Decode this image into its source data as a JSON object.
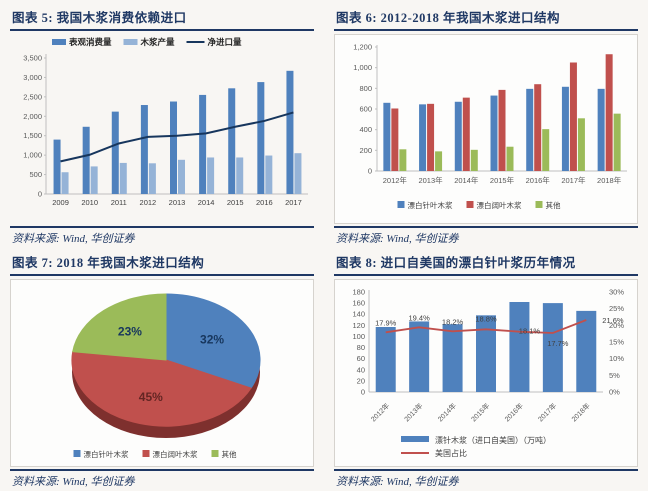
{
  "page": {
    "background": "#f8f6f3"
  },
  "colors": {
    "title_navy": "#1F3864",
    "bar_blue": "#4F81BD",
    "bar_light_blue": "#95B3D7",
    "bar_red": "#C0504D",
    "bar_green": "#9BBB59",
    "line_navy": "#17365D",
    "line_red": "#C0504D",
    "pie_rim_dark_red": "#7E302E",
    "axis_line": "#BFBFBF",
    "tick_text": "#595959",
    "chart_border": "#d6d3ce"
  },
  "chart_data": [
    {
      "id": "chart5",
      "type": "bar",
      "title": "图表 5: 我国木浆消费依赖进口",
      "source": "资料来源: Wind, 华创证券",
      "categories": [
        "2009",
        "2010",
        "2011",
        "2012",
        "2013",
        "2014",
        "2015",
        "2016",
        "2017"
      ],
      "series": [
        {
          "name": "表观消费量",
          "kind": "bar",
          "color": "#4F81BD",
          "values": [
            1400,
            1730,
            2120,
            2290,
            2380,
            2550,
            2720,
            2880,
            3170
          ]
        },
        {
          "name": "木浆产量",
          "kind": "bar",
          "color": "#95B3D7",
          "values": [
            560,
            710,
            800,
            790,
            880,
            940,
            940,
            990,
            1050
          ]
        },
        {
          "name": "净进口量",
          "kind": "line",
          "color": "#17365D",
          "values": [
            840,
            1010,
            1300,
            1470,
            1500,
            1560,
            1730,
            1880,
            2100
          ]
        }
      ],
      "ylim": [
        0,
        3500
      ],
      "ystep": 500,
      "grid": false,
      "legend_position": "top"
    },
    {
      "id": "chart6",
      "type": "bar",
      "title": "图表 6: 2012-2018 年我国木浆进口结构",
      "source": "资料来源: Wind, 华创证券",
      "categories": [
        "2012年",
        "2013年",
        "2014年",
        "2015年",
        "2016年",
        "2017年",
        "2018年"
      ],
      "series": [
        {
          "name": "漂白针叶木浆",
          "kind": "bar",
          "color": "#4F81BD",
          "values": [
            660,
            645,
            670,
            730,
            795,
            815,
            795
          ]
        },
        {
          "name": "漂白阔叶木浆",
          "kind": "bar",
          "color": "#C0504D",
          "values": [
            605,
            650,
            710,
            785,
            840,
            1050,
            1130
          ]
        },
        {
          "name": "其他",
          "kind": "bar",
          "color": "#9BBB59",
          "values": [
            210,
            190,
            205,
            235,
            405,
            510,
            555
          ]
        }
      ],
      "ylim": [
        0,
        1200
      ],
      "ystep": 200,
      "grid": false,
      "legend_position": "bottom"
    },
    {
      "id": "chart7",
      "type": "pie",
      "title": "图表 7: 2018 年我国木浆进口结构",
      "source": "资料来源: Wind, 华创证券",
      "slices": [
        {
          "name": "漂白针叶木浆",
          "color": "#4F81BD",
          "value": 32,
          "label": "32%",
          "label_color": "#17365D"
        },
        {
          "name": "漂白阔叶木浆",
          "color": "#C0504D",
          "value": 45,
          "label": "45%",
          "label_color": "#632523"
        },
        {
          "name": "其他",
          "color": "#9BBB59",
          "value": 23,
          "label": "23%",
          "label_color": "#17365D"
        }
      ],
      "start_angle_deg": -90,
      "direction": "clockwise",
      "legend_position": "bottom",
      "effect_3d": true
    },
    {
      "id": "chart8",
      "type": "bar",
      "title": "图表 8: 进口自美国的漂白针叶浆历年情况",
      "source": "资料来源: Wind, 华创证券",
      "categories": [
        "2012年",
        "2013年",
        "2014年",
        "2015年",
        "2016年",
        "2017年",
        "2018年"
      ],
      "bar_series": {
        "name": "漂针木浆（进口自美国）（万吨）",
        "color": "#4F81BD",
        "values": [
          117,
          127,
          122,
          138,
          162,
          160,
          146
        ]
      },
      "line_series": {
        "name": "美国占比",
        "color": "#C0504D",
        "values": [
          17.9,
          19.4,
          18.2,
          18.8,
          18.1,
          17.7,
          21.6
        ],
        "labels": [
          "17.9%",
          "19.4%",
          "18.2%",
          "18.8%",
          "18.1%",
          "17.7%",
          "21.6%"
        ]
      },
      "ylim_left": [
        0,
        180
      ],
      "ystep_left": 20,
      "ylim_right": [
        0,
        30
      ],
      "ystep_right": 5,
      "right_tick_suffix": "%",
      "grid": false,
      "legend_position": "bottom-left"
    }
  ]
}
